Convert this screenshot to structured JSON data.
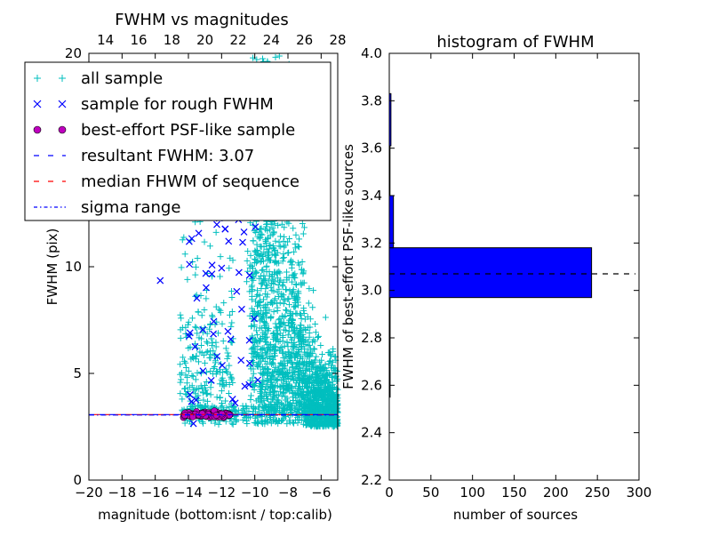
{
  "chart_data": [
    {
      "type": "scatter",
      "title": "FWHM vs magnitudes",
      "xlabel": "magnitude (bottom:isnt / top:calib)",
      "ylabel": "FWHM (pix)",
      "xlim": [
        -20,
        -5
      ],
      "ylim": [
        0,
        20
      ],
      "xticks": [
        "−20",
        "−18",
        "−16",
        "−14",
        "−12",
        "−10",
        "−8",
        "−6"
      ],
      "yticks": [
        "0",
        "5",
        "10"
      ],
      "top_xlim": [
        13,
        28
      ],
      "top_xticks": [
        "14",
        "16",
        "18",
        "20",
        "22",
        "24",
        "26",
        "28"
      ],
      "top_xlabel_value_20": "20",
      "series": [
        {
          "name": "all sample",
          "marker": "+",
          "color": "#00bfbf"
        },
        {
          "name": "sample for rough FWHM",
          "marker": "x",
          "color": "#0000ff"
        },
        {
          "name": "best-effort PSF-like sample",
          "marker": "o",
          "color": "#bf00bf"
        },
        {
          "name": "resultant FWHM: 3.07",
          "line": "dashed",
          "color": "#0000ff",
          "y": 3.07
        },
        {
          "name": "median FHWM of sequence",
          "line": "dashed",
          "color": "#ff0000",
          "y": 3.07
        },
        {
          "name": "sigma range",
          "line": "dashdot",
          "color": "#0000ff",
          "y": 3.07
        }
      ],
      "legend_position": "top-left",
      "grid": false
    },
    {
      "type": "bar",
      "orientation": "horizontal",
      "title": "histogram of FWHM",
      "xlabel": "number of sources",
      "ylabel": "FWHM of best-effort PSF-like sources",
      "xlim": [
        0,
        300
      ],
      "ylim": [
        2.2,
        4.0
      ],
      "xticks": [
        "0",
        "50",
        "100",
        "150",
        "200",
        "250",
        "300"
      ],
      "yticks": [
        "2.2",
        "2.4",
        "2.6",
        "2.8",
        "3.0",
        "3.2",
        "3.4",
        "3.6",
        "3.8",
        "4.0"
      ],
      "bins": [
        {
          "from": 2.55,
          "to": 2.97,
          "count": 1
        },
        {
          "from": 2.97,
          "to": 3.18,
          "count": 243
        },
        {
          "from": 3.18,
          "to": 3.4,
          "count": 5
        },
        {
          "from": 3.4,
          "to": 3.61,
          "count": 0
        },
        {
          "from": 3.61,
          "to": 3.83,
          "count": 2
        }
      ],
      "bar_color": "#0000ff",
      "reference_line": {
        "y": 3.07,
        "style": "dashed",
        "color": "#000000"
      },
      "grid": false
    }
  ]
}
